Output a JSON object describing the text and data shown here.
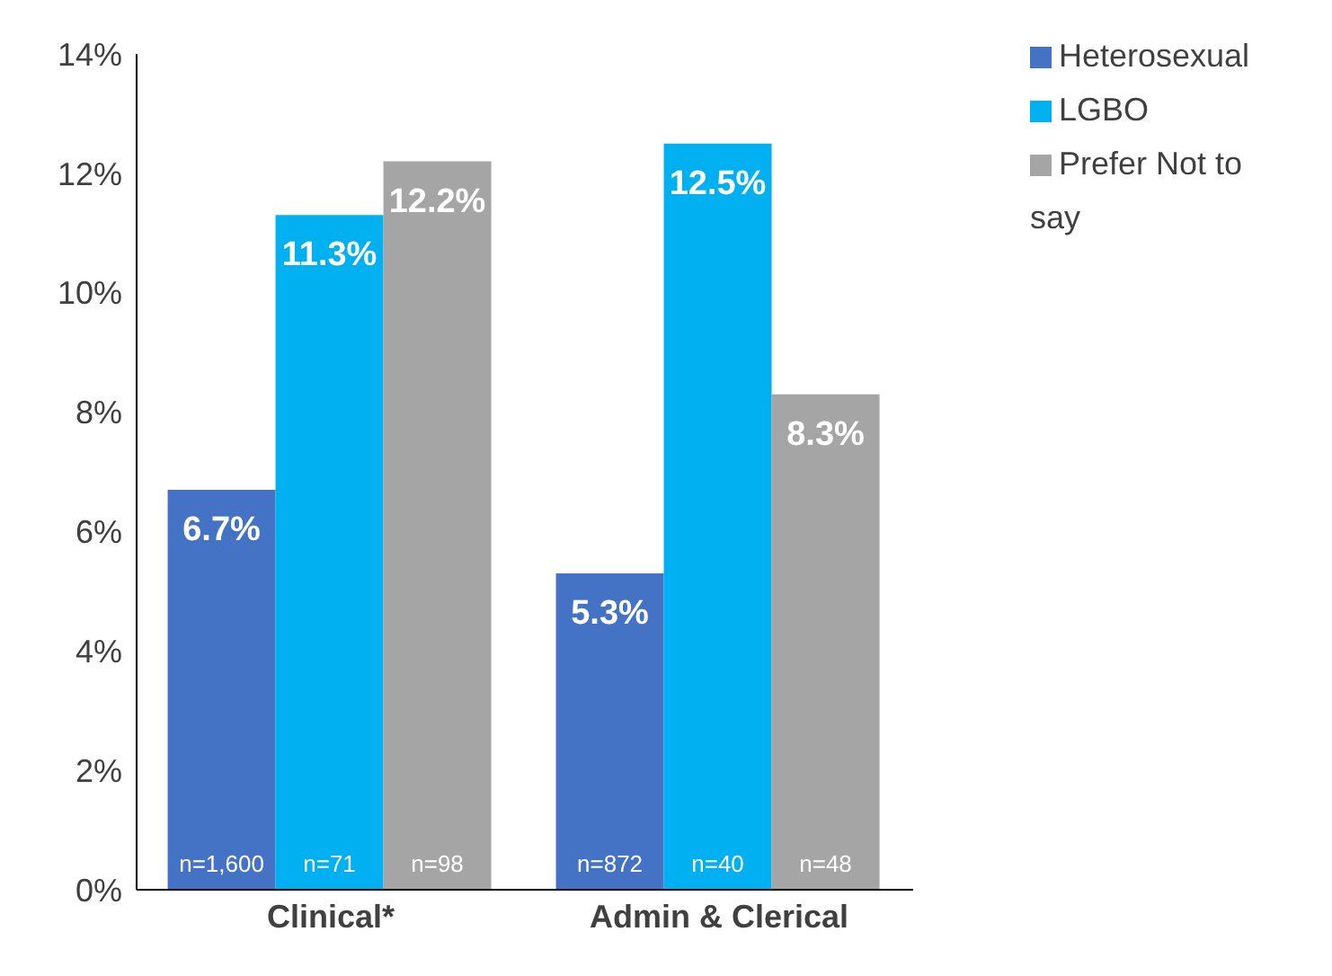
{
  "chart_data": {
    "type": "bar",
    "categories": [
      "Clinical*",
      "Admin & Clerical"
    ],
    "series": [
      {
        "name": "Heterosexual",
        "color": "#4472c4",
        "values": [
          6.7,
          5.3
        ],
        "value_labels": [
          "6.7%",
          "5.3%"
        ]
      },
      {
        "name": "LGBO",
        "color": "#00b0f0",
        "values": [
          11.3,
          12.5
        ],
        "value_labels": [
          "11.3%",
          "12.5%"
        ]
      },
      {
        "name": "Prefer Not to say",
        "color": "#a5a5a5",
        "values": [
          12.2,
          8.3
        ],
        "value_labels": [
          "12.2%",
          "8.3%"
        ]
      }
    ],
    "ylim": [
      0,
      14
    ],
    "yticks": [
      {
        "value": 0,
        "label": "0%"
      },
      {
        "value": 2,
        "label": "2%"
      },
      {
        "value": 4,
        "label": "4%"
      },
      {
        "value": 6,
        "label": "6%"
      },
      {
        "value": 8,
        "label": "8%"
      },
      {
        "value": 10,
        "label": "10%"
      },
      {
        "value": 12,
        "label": "12%"
      },
      {
        "value": 14,
        "label": "14%"
      }
    ],
    "annotations": [
      "n=1,600",
      "n=71",
      "n=98",
      "n=872",
      "n=40",
      "n=48"
    ],
    "grid": false,
    "legend": "top right"
  }
}
